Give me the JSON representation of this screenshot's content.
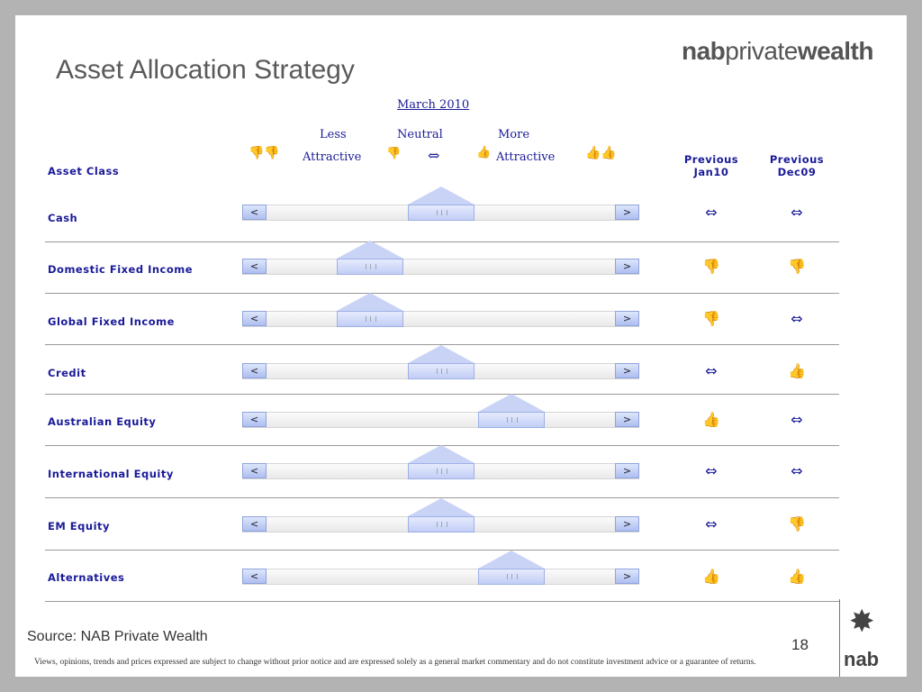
{
  "title": "Asset Allocation Strategy",
  "brand": {
    "part1": "nab",
    "part2": "private",
    "part3": "wealth"
  },
  "month": "March 2010",
  "header": {
    "less": "Less",
    "attractive_left": "Attractive",
    "neutral": "Neutral",
    "more": "More",
    "attractive_right": "Attractive",
    "asset_class": "Asset Class",
    "prev1_line1": "Previous",
    "prev1_line2": "Jan10",
    "prev2_line1": "Previous",
    "prev2_line2": "Dec09",
    "neutral_symbol": "⇔",
    "less_icons": "👎👎",
    "less_icon_small": "👎",
    "more_icon_small": "👍",
    "more_icons": "👍👍"
  },
  "rows": [
    {
      "label": "Cash",
      "position": 0.5,
      "jan10": "⇔",
      "dec09": "⇔"
    },
    {
      "label": "Domestic Fixed Income",
      "position": 0.25,
      "jan10": "👎",
      "dec09": "👎"
    },
    {
      "label": "Global Fixed Income",
      "position": 0.25,
      "jan10": "👎",
      "dec09": "⇔"
    },
    {
      "label": "Credit",
      "position": 0.5,
      "jan10": "⇔",
      "dec09": "👍"
    },
    {
      "label": "Australian Equity",
      "position": 0.75,
      "jan10": "👍",
      "dec09": "⇔"
    },
    {
      "label": "International Equity",
      "position": 0.5,
      "jan10": "⇔",
      "dec09": "⇔"
    },
    {
      "label": "EM Equity",
      "position": 0.5,
      "jan10": "⇔",
      "dec09": "👎"
    },
    {
      "label": "Alternatives",
      "position": 0.75,
      "jan10": "👍",
      "dec09": "👍"
    }
  ],
  "slider": {
    "left_arrow": "<",
    "right_arrow": ">"
  },
  "source": "Source: NAB Private Wealth",
  "page_number": "18",
  "disclaimer": "Views, opinions, trends and prices expressed are subject to change without prior notice and are expressed solely as a general market commentary and do not constitute investment advice or a guarantee of returns.",
  "logo_text": "nab",
  "logo_star": "✸"
}
